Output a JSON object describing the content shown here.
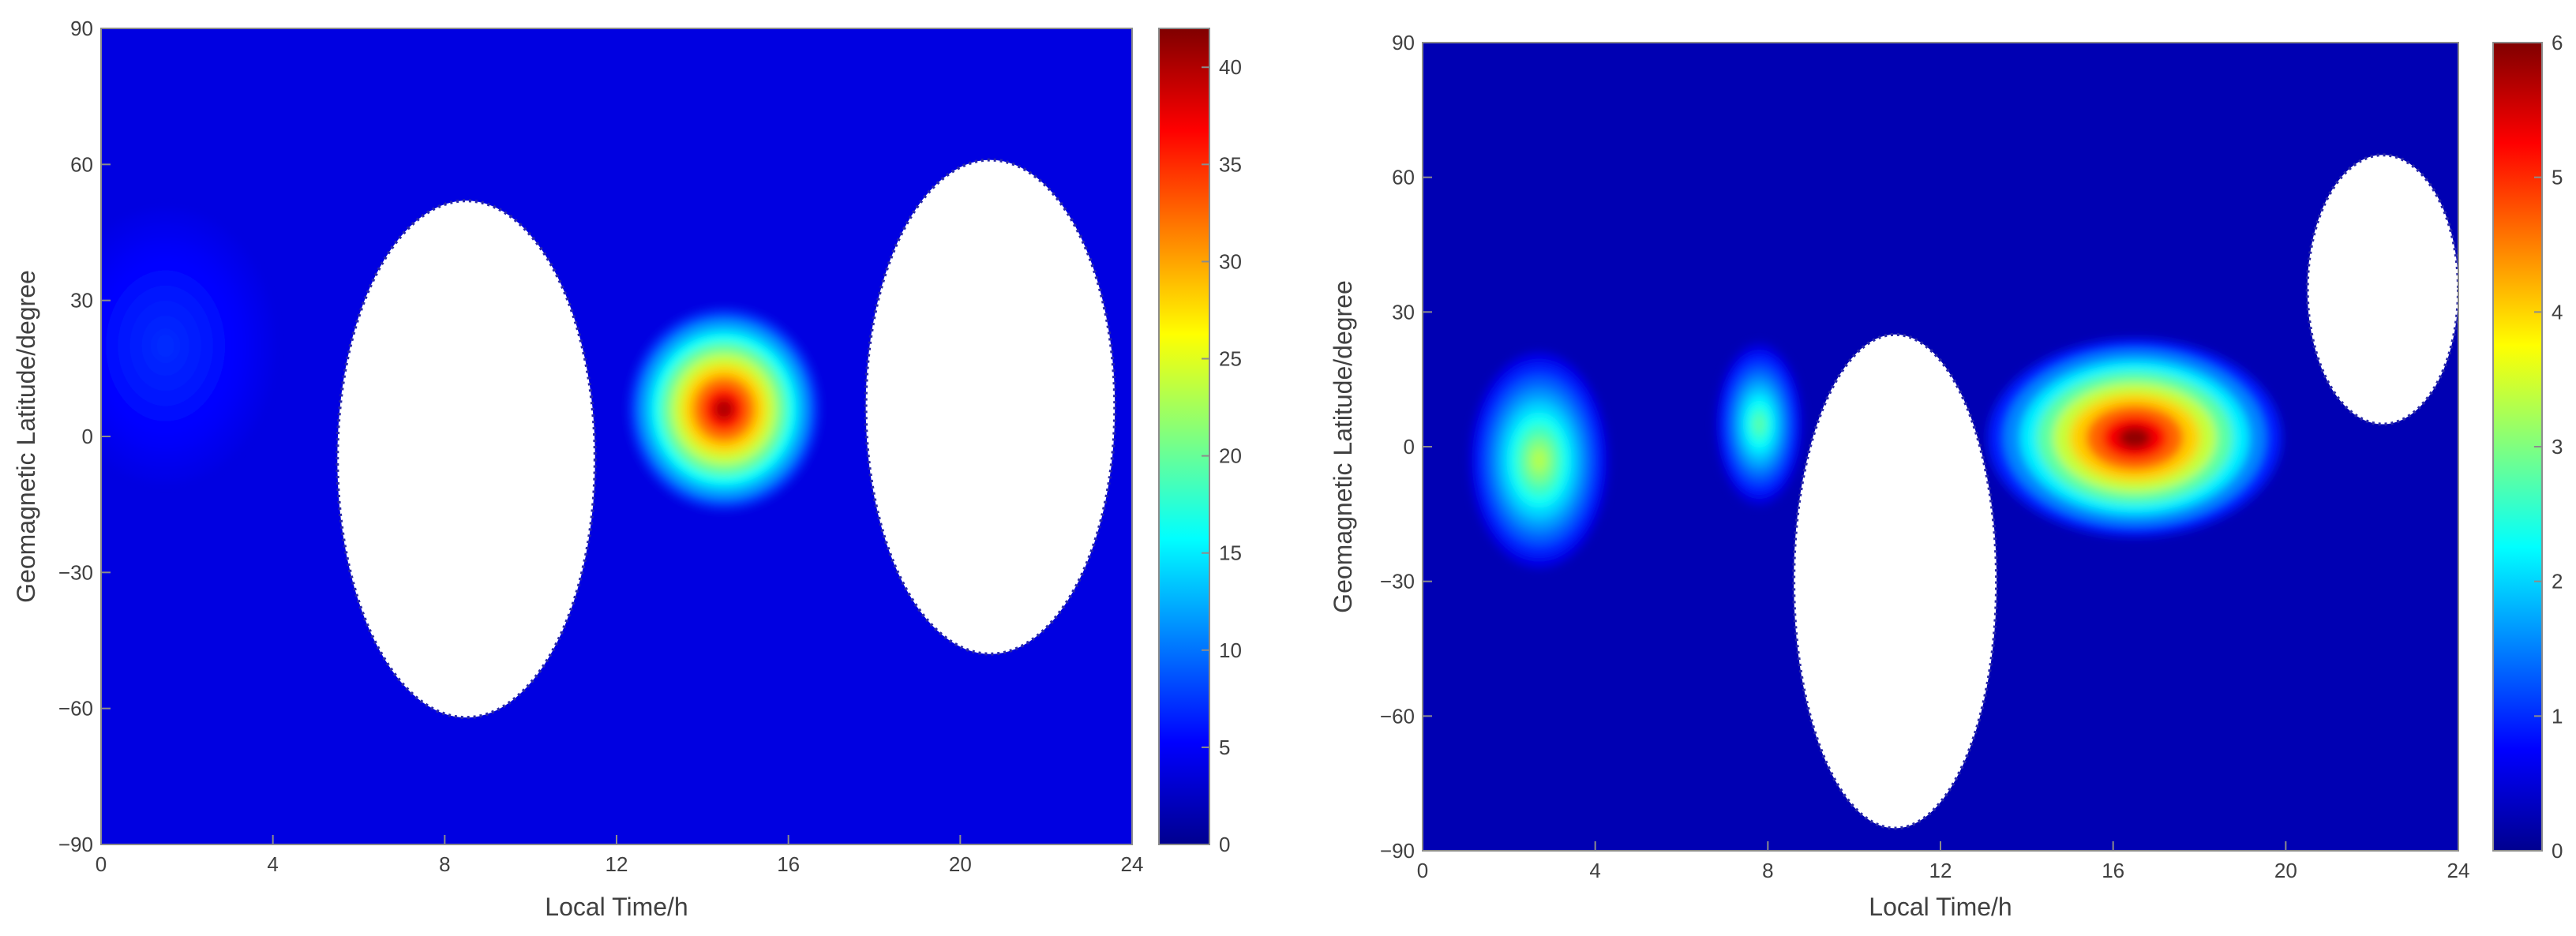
{
  "chart_data": [
    {
      "type": "heatmap",
      "title": "",
      "xlabel": "Local Time/h",
      "ylabel": "Geomagnetic Latitude/degree",
      "xlim": [
        0,
        24
      ],
      "ylim": [
        -90,
        90
      ],
      "xticks": [
        "0",
        "4",
        "8",
        "12",
        "16",
        "20",
        "24"
      ],
      "yticks": [
        "90",
        "60",
        "30",
        "0",
        "−30",
        "−60",
        "−90"
      ],
      "colorbar": {
        "min": 0,
        "max": 42,
        "ticks": [
          "40",
          "35",
          "30",
          "25",
          "20",
          "15",
          "10",
          "5",
          "0"
        ],
        "colormap": "jet"
      },
      "background_level": 4,
      "no_data_regions": [
        {
          "lt_range": [
            5.5,
            11.5
          ],
          "lat_range": [
            -62,
            52
          ]
        },
        {
          "lt_range": [
            17.8,
            23.6
          ],
          "lat_range": [
            -48,
            61
          ]
        }
      ],
      "hotspots": [
        {
          "lt": 14.5,
          "lat": 6,
          "value": 40,
          "lt_spread": 2.2,
          "lat_spread": 22
        },
        {
          "lt": 1.5,
          "lat": 20,
          "value": 7,
          "lt_spread": 2.5,
          "lat_spread": 30
        }
      ],
      "grid": false,
      "legend": "none"
    },
    {
      "type": "heatmap",
      "title": "",
      "xlabel": "Local Time/h",
      "ylabel": "Geomagnetic Latitude/degree",
      "xlim": [
        0,
        24
      ],
      "ylim": [
        -90,
        90
      ],
      "xticks": [
        "0",
        "4",
        "8",
        "12",
        "16",
        "20",
        "24"
      ],
      "yticks": [
        "90",
        "60",
        "30",
        "0",
        "−30",
        "−60",
        "−90"
      ],
      "colorbar": {
        "min": 0,
        "max": 6,
        "ticks": [
          "6",
          "5",
          "4",
          "3",
          "2",
          "1",
          "0"
        ],
        "colormap": "jet"
      },
      "background_level": 0.3,
      "no_data_regions": [
        {
          "lt_range": [
            8.6,
            13.3
          ],
          "lat_range": [
            -85,
            25
          ]
        },
        {
          "lt_range": [
            20.5,
            24
          ],
          "lat_range": [
            5,
            65
          ]
        }
      ],
      "hotspots": [
        {
          "lt": 16.5,
          "lat": 2,
          "value": 5.9,
          "lt_spread": 3.4,
          "lat_spread": 22
        },
        {
          "lt": 2.7,
          "lat": -3,
          "value": 3.3,
          "lt_spread": 1.6,
          "lat_spread": 24
        },
        {
          "lt": 7.8,
          "lat": 5,
          "value": 2.8,
          "lt_spread": 1.0,
          "lat_spread": 18
        }
      ],
      "grid": false,
      "legend": "none"
    }
  ]
}
